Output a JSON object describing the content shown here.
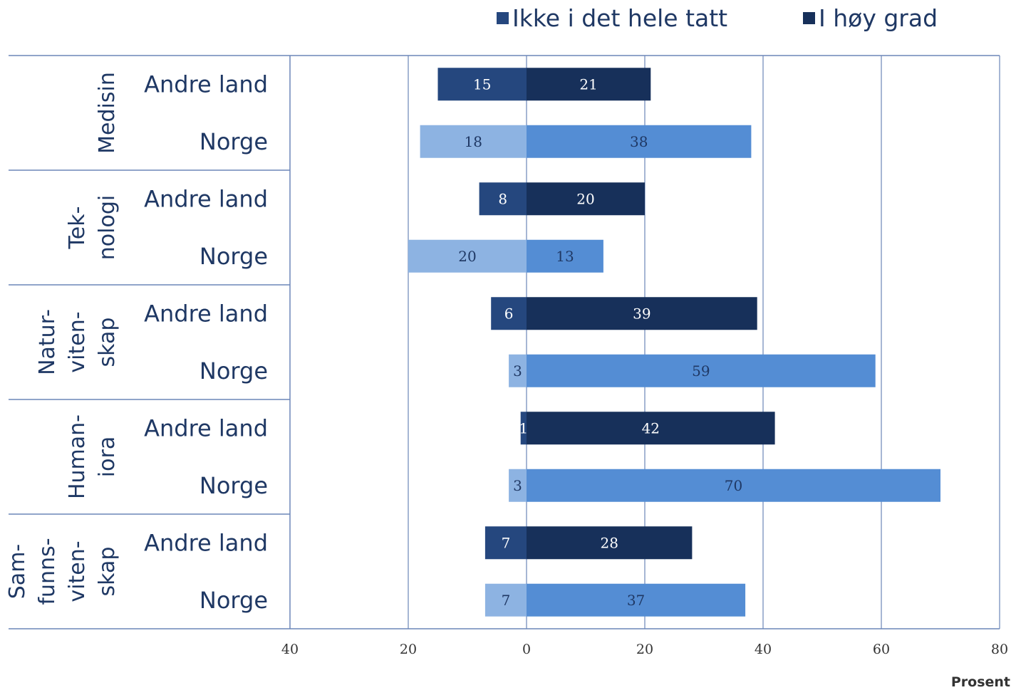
{
  "chart_data": {
    "type": "bar",
    "orientation": "horizontal-diverging",
    "title": "",
    "xlabel": "Prosent",
    "xlim": [
      -40,
      80
    ],
    "x_ticks": [
      -40,
      -20,
      0,
      20,
      40,
      60,
      80
    ],
    "x_tick_labels": [
      "40",
      "20",
      "0",
      "20",
      "40",
      "60",
      "80"
    ],
    "legend": {
      "placement": "top-right",
      "items": [
        {
          "label": "Ikke i det hele tatt",
          "color": "#25477e"
        },
        {
          "label": "I høy grad",
          "color": "#17305a"
        }
      ]
    },
    "grid": true,
    "series": [
      {
        "name": "Ikke i det hele tatt",
        "direction": "left"
      },
      {
        "name": "I høy grad",
        "direction": "right"
      }
    ],
    "groups": [
      {
        "field_lines": [
          "Medisin"
        ],
        "rows": [
          {
            "label": "Andre land",
            "not_at_all": 15,
            "high_degree": 21
          },
          {
            "label": "Norge",
            "not_at_all": 18,
            "high_degree": 38
          }
        ]
      },
      {
        "field_lines": [
          "Tek-",
          "nologi"
        ],
        "rows": [
          {
            "label": "Andre land",
            "not_at_all": 8,
            "high_degree": 20
          },
          {
            "label": "Norge",
            "not_at_all": 20,
            "high_degree": 13
          }
        ]
      },
      {
        "field_lines": [
          "Natur-",
          "viten-",
          "skap"
        ],
        "rows": [
          {
            "label": "Andre land",
            "not_at_all": 6,
            "high_degree": 39
          },
          {
            "label": "Norge",
            "not_at_all": 3,
            "high_degree": 59
          }
        ]
      },
      {
        "field_lines": [
          "Human-",
          "iora"
        ],
        "rows": [
          {
            "label": "Andre land",
            "not_at_all": 1,
            "high_degree": 42
          },
          {
            "label": "Norge",
            "not_at_all": 3,
            "high_degree": 70
          }
        ]
      },
      {
        "field_lines": [
          "Sam-",
          "funns-",
          "viten-",
          "skap"
        ],
        "rows": [
          {
            "label": "Andre land",
            "not_at_all": 7,
            "high_degree": 28
          },
          {
            "label": "Norge",
            "not_at_all": 7,
            "high_degree": 37
          }
        ]
      }
    ],
    "colors": {
      "andre_left": "#25477e",
      "andre_right": "#17305a",
      "norge_left": "#8db3e2",
      "norge_right": "#548dd4",
      "grid": "#6b86b8",
      "label_on_dark": "#ffffff",
      "label_on_light": "#1f3864"
    }
  }
}
